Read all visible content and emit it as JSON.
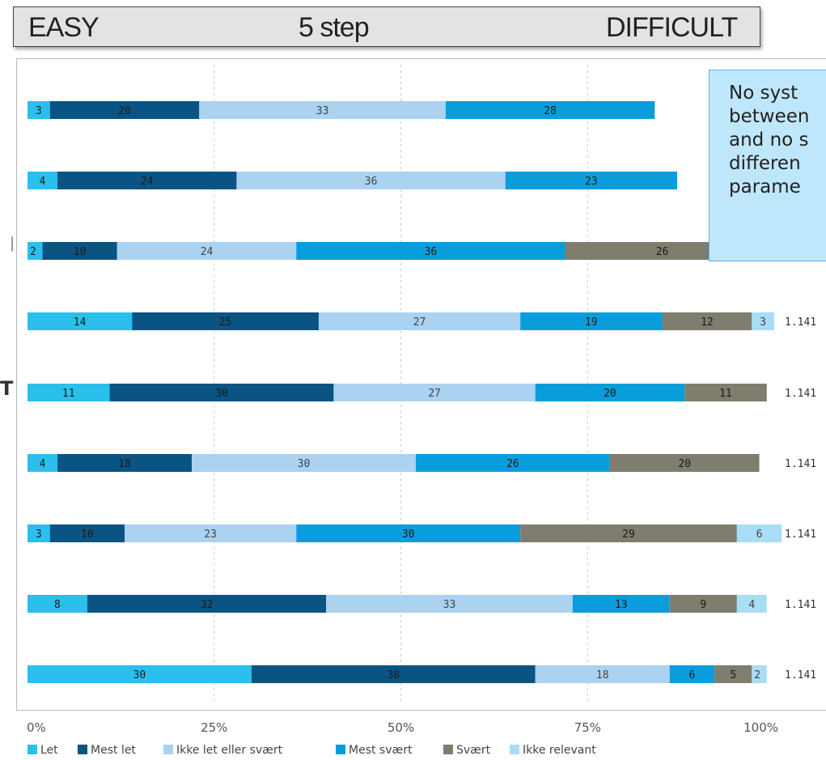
{
  "scale_bar": {
    "left": "EASY",
    "middle": "5 step",
    "right": "DIFFICULT"
  },
  "callout": {
    "text": "No syst\nbetween\nand no s\ndifferen\nparame"
  },
  "stray_marks": {
    "left_t": "T",
    "left_tick": "|"
  },
  "chart_data": {
    "type": "bar",
    "orientation": "horizontal",
    "stacked": true,
    "xlim": [
      0,
      100
    ],
    "x_ticks": [
      "0%",
      "25%",
      "50%",
      "75%",
      "100%"
    ],
    "grid": "vertical-dashed",
    "legend_position": "bottom",
    "series_colors": [
      "#2bbfee",
      "#0a5484",
      "#abd2f1",
      "#0a9ddb",
      "#7f7d6e",
      "#a9ddf5"
    ],
    "series": [
      {
        "name": "Let",
        "values": [
          3,
          4,
          2,
          14,
          11,
          4,
          3,
          8,
          30
        ]
      },
      {
        "name": "Mest let",
        "values": [
          20,
          24,
          10,
          25,
          30,
          18,
          10,
          32,
          38
        ]
      },
      {
        "name": "Ikke let eller svært",
        "values": [
          33,
          36,
          24,
          27,
          27,
          30,
          23,
          33,
          18
        ]
      },
      {
        "name": "Mest svært",
        "values": [
          28,
          23,
          36,
          19,
          20,
          26,
          30,
          13,
          6
        ]
      },
      {
        "name": "Svært",
        "values": [
          null,
          null,
          26,
          12,
          11,
          20,
          29,
          9,
          5
        ]
      },
      {
        "name": "Ikke relevant",
        "values": [
          null,
          null,
          null,
          3,
          null,
          null,
          6,
          4,
          2
        ]
      }
    ],
    "row_totals": [
      null,
      null,
      null,
      "1.141",
      "1.141",
      "1.141",
      "1.141",
      "1.141",
      "1.141"
    ]
  }
}
